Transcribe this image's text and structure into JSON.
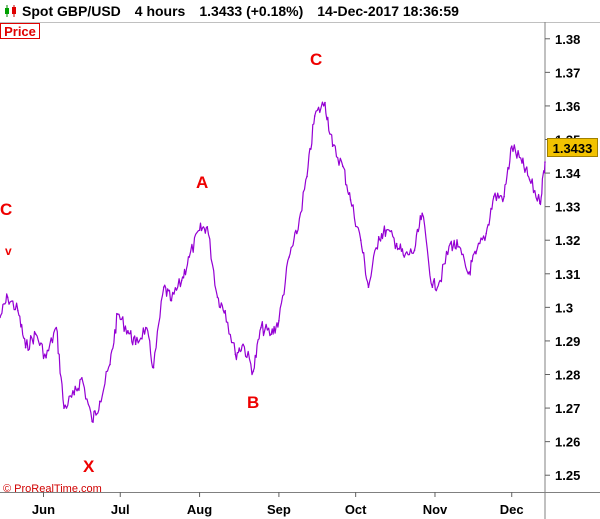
{
  "header": {
    "instrument": "Spot GBP/USD",
    "timeframe": "4 hours",
    "price_change": "1.3433 (+0.18%)",
    "datetime": "14-Dec-2017 18:36:59"
  },
  "panel_label": "Price",
  "copyright": "© ProRealTime.com",
  "last_price_label": "1.3433",
  "wave_labels": [
    {
      "text": "C"
    },
    {
      "text": "v"
    },
    {
      "text": "X"
    },
    {
      "text": "A"
    },
    {
      "text": "B"
    },
    {
      "text": "C"
    }
  ],
  "colors": {
    "series": "#9400d3",
    "wave_labels": "#ee0000",
    "last_price_bg": "#f2c200"
  },
  "icons": [
    "candlestick-icon"
  ],
  "chart_data": {
    "type": "line",
    "title": "Spot GBP/USD",
    "ylim": [
      1.245,
      1.385
    ],
    "yticks": [
      1.25,
      1.26,
      1.27,
      1.28,
      1.29,
      1.3,
      1.31,
      1.32,
      1.33,
      1.34,
      1.35,
      1.36,
      1.37,
      1.38
    ],
    "ytick_labels": [
      "1.25",
      "1.26",
      "1.27",
      "1.28",
      "1.29",
      "1.3",
      "1.31",
      "1.32",
      "1.33",
      "1.34",
      "1.35",
      "1.36",
      "1.37",
      "1.38"
    ],
    "xtick_labels": [
      "Jun",
      "Jul",
      "Aug",
      "Sep",
      "Oct",
      "Nov",
      "Dec"
    ],
    "x_range": [
      "2017-05-15",
      "2017-12-14"
    ],
    "xtick_dates": [
      "2017-06-01",
      "2017-07-01",
      "2017-08-01",
      "2017-09-01",
      "2017-10-01",
      "2017-11-01",
      "2017-12-01"
    ],
    "grid": false,
    "series": [
      {
        "x": [
          "2017-05-15",
          "2017-05-18",
          "2017-05-22",
          "2017-05-25",
          "2017-05-29",
          "2017-06-02",
          "2017-06-06",
          "2017-06-09",
          "2017-06-13",
          "2017-06-16",
          "2017-06-20",
          "2017-06-23",
          "2017-06-27",
          "2017-06-30",
          "2017-07-04",
          "2017-07-07",
          "2017-07-11",
          "2017-07-14",
          "2017-07-18",
          "2017-07-21",
          "2017-07-25",
          "2017-07-28",
          "2017-08-01",
          "2017-08-04",
          "2017-08-08",
          "2017-08-11",
          "2017-08-15",
          "2017-08-18",
          "2017-08-22",
          "2017-08-25",
          "2017-08-29",
          "2017-09-01",
          "2017-09-05",
          "2017-09-08",
          "2017-09-12",
          "2017-09-15",
          "2017-09-19",
          "2017-09-22",
          "2017-09-26",
          "2017-09-29",
          "2017-10-03",
          "2017-10-06",
          "2017-10-10",
          "2017-10-13",
          "2017-10-17",
          "2017-10-20",
          "2017-10-24",
          "2017-10-27",
          "2017-10-31",
          "2017-11-03",
          "2017-11-07",
          "2017-11-10",
          "2017-11-14",
          "2017-11-17",
          "2017-11-21",
          "2017-11-24",
          "2017-11-28",
          "2017-12-01",
          "2017-12-05",
          "2017-12-08",
          "2017-12-12",
          "2017-12-14"
        ],
        "values": [
          1.297,
          1.303,
          1.299,
          1.288,
          1.292,
          1.285,
          1.294,
          1.27,
          1.274,
          1.279,
          1.266,
          1.272,
          1.283,
          1.298,
          1.293,
          1.289,
          1.294,
          1.282,
          1.306,
          1.302,
          1.308,
          1.315,
          1.323,
          1.324,
          1.303,
          1.299,
          1.286,
          1.289,
          1.281,
          1.294,
          1.292,
          1.296,
          1.315,
          1.322,
          1.339,
          1.357,
          1.361,
          1.348,
          1.342,
          1.332,
          1.32,
          1.306,
          1.321,
          1.323,
          1.319,
          1.315,
          1.317,
          1.328,
          1.306,
          1.308,
          1.319,
          1.318,
          1.31,
          1.316,
          1.322,
          1.333,
          1.333,
          1.348,
          1.343,
          1.338,
          1.331,
          1.3433
        ]
      }
    ]
  }
}
